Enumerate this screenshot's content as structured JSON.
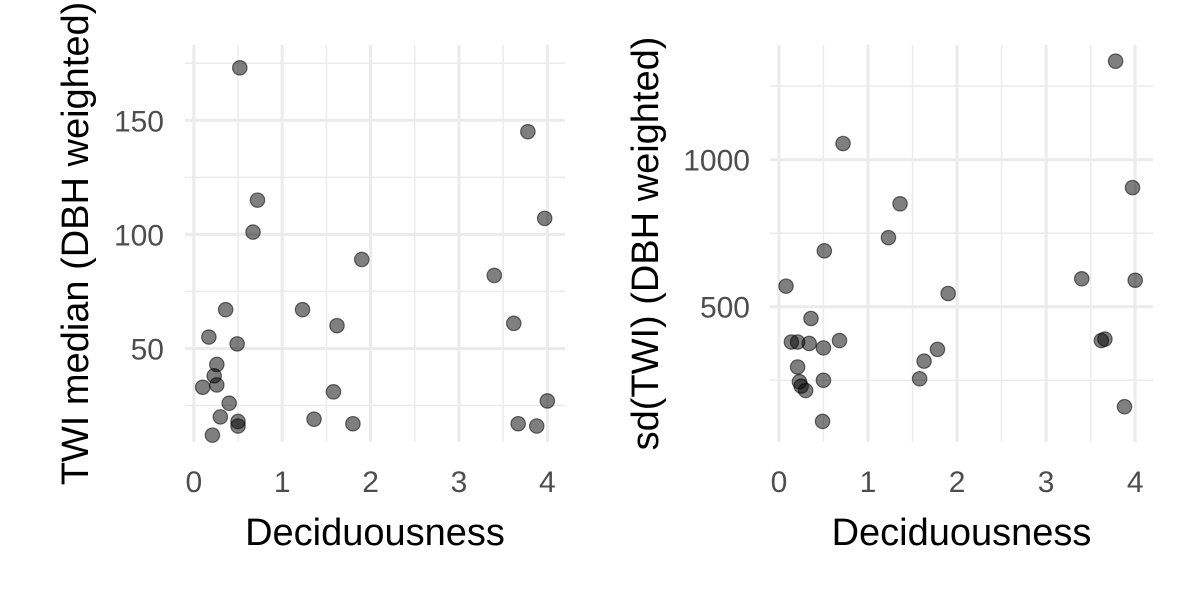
{
  "chart_data": [
    {
      "type": "scatter",
      "xlabel": "Deciduousness",
      "ylabel": "TWI median (DBH weighted)",
      "xlim": [
        -0.1,
        4.2
      ],
      "ylim": [
        9,
        183
      ],
      "x_ticks": [
        0,
        1,
        2,
        3,
        4
      ],
      "y_ticks": [
        50,
        100,
        150
      ],
      "grid": true,
      "points": [
        {
          "x": 0.52,
          "y": 173
        },
        {
          "x": 3.78,
          "y": 145
        },
        {
          "x": 0.72,
          "y": 115
        },
        {
          "x": 3.97,
          "y": 107
        },
        {
          "x": 0.67,
          "y": 101
        },
        {
          "x": 1.9,
          "y": 89
        },
        {
          "x": 3.4,
          "y": 82
        },
        {
          "x": 0.36,
          "y": 67
        },
        {
          "x": 1.23,
          "y": 67
        },
        {
          "x": 1.62,
          "y": 60
        },
        {
          "x": 3.62,
          "y": 61
        },
        {
          "x": 0.17,
          "y": 55
        },
        {
          "x": 0.49,
          "y": 52
        },
        {
          "x": 0.26,
          "y": 43
        },
        {
          "x": 0.23,
          "y": 38
        },
        {
          "x": 0.26,
          "y": 34
        },
        {
          "x": 0.1,
          "y": 33
        },
        {
          "x": 1.58,
          "y": 31
        },
        {
          "x": 0.4,
          "y": 26
        },
        {
          "x": 4.0,
          "y": 27
        },
        {
          "x": 0.3,
          "y": 20
        },
        {
          "x": 0.5,
          "y": 18
        },
        {
          "x": 1.36,
          "y": 19
        },
        {
          "x": 0.5,
          "y": 16
        },
        {
          "x": 1.8,
          "y": 17
        },
        {
          "x": 3.67,
          "y": 17
        },
        {
          "x": 3.88,
          "y": 16
        },
        {
          "x": 0.21,
          "y": 12
        }
      ]
    },
    {
      "type": "scatter",
      "xlabel": "Deciduousness",
      "ylabel": "sd(TWI) (DBH weighted)",
      "xlim": [
        -0.1,
        4.2
      ],
      "ylim": [
        40,
        1390
      ],
      "x_ticks": [
        0,
        1,
        2,
        3,
        4
      ],
      "y_ticks": [
        500,
        1000
      ],
      "grid": true,
      "points": [
        {
          "x": 3.78,
          "y": 1335
        },
        {
          "x": 0.72,
          "y": 1055
        },
        {
          "x": 3.97,
          "y": 905
        },
        {
          "x": 1.36,
          "y": 850
        },
        {
          "x": 1.23,
          "y": 735
        },
        {
          "x": 0.51,
          "y": 690
        },
        {
          "x": 3.4,
          "y": 595
        },
        {
          "x": 4.0,
          "y": 590
        },
        {
          "x": 0.08,
          "y": 570
        },
        {
          "x": 1.9,
          "y": 545
        },
        {
          "x": 0.36,
          "y": 460
        },
        {
          "x": 0.68,
          "y": 385
        },
        {
          "x": 3.62,
          "y": 385
        },
        {
          "x": 3.66,
          "y": 390
        },
        {
          "x": 0.14,
          "y": 380
        },
        {
          "x": 0.21,
          "y": 380
        },
        {
          "x": 0.34,
          "y": 375
        },
        {
          "x": 0.5,
          "y": 360
        },
        {
          "x": 1.78,
          "y": 355
        },
        {
          "x": 1.63,
          "y": 315
        },
        {
          "x": 0.21,
          "y": 295
        },
        {
          "x": 1.58,
          "y": 255
        },
        {
          "x": 0.5,
          "y": 250
        },
        {
          "x": 0.23,
          "y": 245
        },
        {
          "x": 0.25,
          "y": 230
        },
        {
          "x": 0.3,
          "y": 215
        },
        {
          "x": 3.88,
          "y": 160
        },
        {
          "x": 0.49,
          "y": 110
        }
      ]
    }
  ]
}
